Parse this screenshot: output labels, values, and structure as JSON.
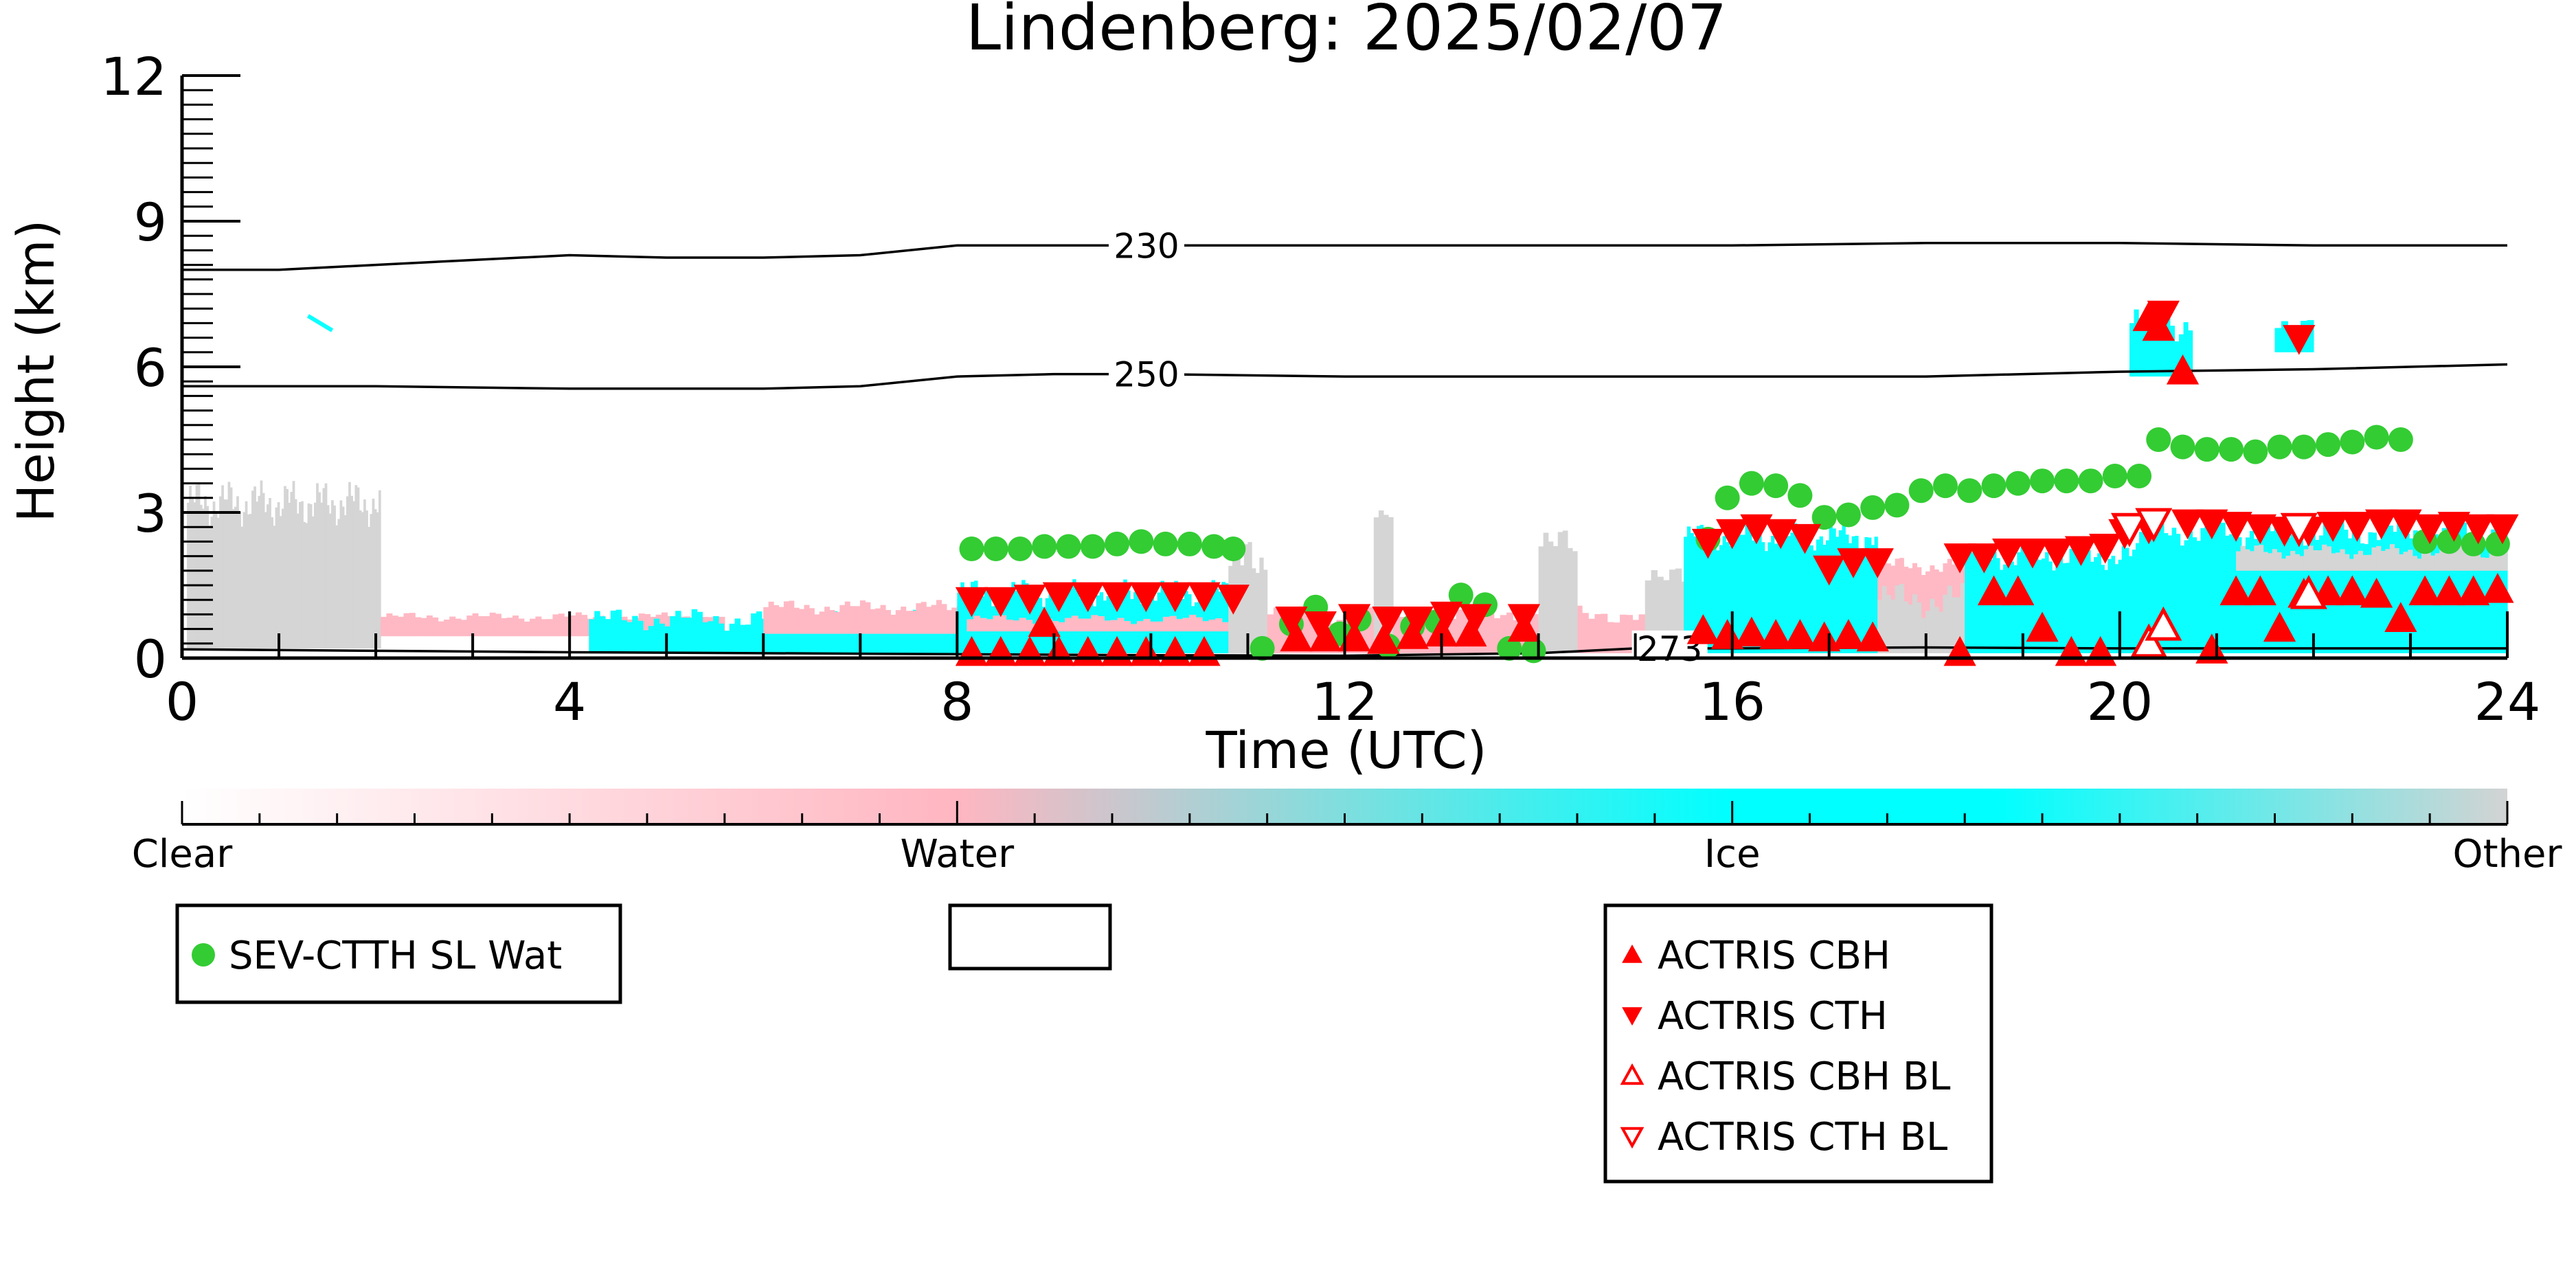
{
  "chart_data": {
    "type": "scatter",
    "title": "Lindenberg: 2025/02/07",
    "xlabel": "Time (UTC)",
    "ylabel": "Height (km)",
    "xlim": [
      0,
      24
    ],
    "ylim": [
      0,
      12
    ],
    "xticks": [
      "0",
      "4",
      "8",
      "12",
      "16",
      "20",
      "24"
    ],
    "yticks": [
      "0",
      "3",
      "6",
      "9",
      "12"
    ],
    "grid": false,
    "colors": {
      "clear": "#ffffff",
      "water": "#ffb6c1",
      "ice": "#00ffff",
      "other": "#d3d3d3",
      "sev": "#33cc33",
      "actris": "#ff0000",
      "contour": "#000000"
    },
    "contours": [
      {
        "label": "230",
        "x": [
          0,
          1,
          2,
          3,
          4,
          5,
          6,
          7,
          8,
          9,
          10,
          12,
          14,
          16,
          18,
          20,
          22,
          24
        ],
        "y": [
          8.0,
          8.0,
          8.1,
          8.2,
          8.3,
          8.25,
          8.25,
          8.3,
          8.5,
          8.5,
          8.5,
          8.5,
          8.5,
          8.5,
          8.55,
          8.55,
          8.5,
          8.5
        ],
        "label_x": 9.6
      },
      {
        "label": "250",
        "x": [
          0,
          2,
          4,
          6,
          7,
          8,
          9,
          10,
          12,
          14,
          16,
          18,
          20,
          22,
          24
        ],
        "y": [
          5.6,
          5.6,
          5.55,
          5.55,
          5.6,
          5.8,
          5.85,
          5.85,
          5.8,
          5.8,
          5.8,
          5.8,
          5.9,
          5.95,
          6.05
        ],
        "label_x": 9.6
      },
      {
        "label": "273",
        "x": [
          0,
          4,
          8,
          10,
          12,
          14,
          15,
          16,
          18,
          20,
          22,
          24
        ],
        "y": [
          0.18,
          0.12,
          0.08,
          0.06,
          0.05,
          0.1,
          0.2,
          0.2,
          0.22,
          0.2,
          0.2,
          0.2
        ],
        "label_x": 15.0
      }
    ],
    "series": [
      {
        "name": "SEV-CTTH SL Wat",
        "marker": "circle",
        "x": [
          8.15,
          8.4,
          8.65,
          8.9,
          9.15,
          9.4,
          9.65,
          9.9,
          10.15,
          10.4,
          10.65,
          10.85,
          11.15,
          11.45,
          11.7,
          11.95,
          12.15,
          12.45,
          12.7,
          12.95,
          13.2,
          13.45,
          13.7,
          13.95,
          15.75,
          15.95,
          16.2,
          16.45,
          16.7,
          16.95,
          17.2,
          17.45,
          17.7,
          17.95,
          18.2,
          18.45,
          18.7,
          18.95,
          19.2,
          19.45,
          19.7,
          19.95,
          20.2,
          20.4,
          20.65,
          20.9,
          21.15,
          21.4,
          21.65,
          21.9,
          22.15,
          22.4,
          22.65,
          22.9,
          23.15,
          23.4,
          23.65,
          23.9
        ],
        "y": [
          2.25,
          2.25,
          2.25,
          2.3,
          2.3,
          2.3,
          2.35,
          2.4,
          2.35,
          2.35,
          2.3,
          2.25,
          0.2,
          0.7,
          1.05,
          0.5,
          0.8,
          0.25,
          0.65,
          0.75,
          1.3,
          1.1,
          0.2,
          0.15,
          2.45,
          3.3,
          3.6,
          3.55,
          3.35,
          2.9,
          2.95,
          3.1,
          3.15,
          3.45,
          3.55,
          3.45,
          3.55,
          3.6,
          3.65,
          3.65,
          3.65,
          3.75,
          3.75,
          4.5,
          4.35,
          4.3,
          4.3,
          4.25,
          4.35,
          4.35,
          4.4,
          4.45,
          4.55,
          4.5,
          2.4,
          2.4,
          2.35,
          2.35
        ]
      },
      {
        "name": "ACTRIS CBH",
        "marker": "triangle-up-filled",
        "x": [
          8.15,
          8.45,
          8.75,
          9.05,
          9.35,
          9.65,
          9.95,
          10.25,
          10.55,
          8.9,
          11.5,
          11.8,
          12.1,
          12.4,
          12.7,
          13.0,
          13.3,
          13.85,
          15.7,
          15.95,
          16.2,
          16.45,
          16.7,
          16.95,
          17.2,
          17.45,
          18.35,
          18.7,
          18.95,
          19.2,
          19.5,
          19.8,
          20.3,
          20.4,
          20.65,
          20.95,
          21.2,
          21.45,
          21.65,
          21.9,
          22.15,
          22.4,
          22.65,
          22.9,
          23.15,
          23.4,
          23.65,
          23.9
        ],
        "y": [
          0.1,
          0.1,
          0.1,
          0.1,
          0.1,
          0.1,
          0.1,
          0.1,
          0.1,
          0.7,
          0.4,
          0.4,
          0.4,
          0.35,
          0.45,
          0.5,
          0.5,
          0.6,
          0.55,
          0.45,
          0.5,
          0.45,
          0.45,
          0.4,
          0.45,
          0.4,
          0.1,
          1.35,
          1.35,
          0.6,
          0.1,
          0.1,
          7.0,
          6.8,
          5.9,
          0.15,
          1.35,
          1.35,
          0.6,
          1.3,
          1.35,
          1.35,
          1.3,
          0.8,
          1.35,
          1.35,
          1.35,
          1.4
        ]
      },
      {
        "name": "ACTRIS CTH",
        "marker": "triangle-down-filled",
        "x": [
          8.15,
          8.45,
          8.75,
          9.05,
          9.35,
          9.65,
          9.95,
          10.25,
          10.55,
          10.85,
          11.45,
          11.75,
          12.1,
          12.45,
          12.75,
          13.05,
          13.35,
          13.85,
          15.75,
          16.0,
          16.25,
          16.5,
          16.75,
          17.0,
          17.25,
          17.5,
          18.35,
          18.6,
          18.85,
          19.1,
          19.35,
          19.6,
          19.85,
          20.05,
          20.3,
          20.45,
          20.7,
          20.95,
          21.2,
          21.45,
          21.7,
          21.95,
          22.2,
          22.45,
          22.7,
          22.95,
          23.2,
          23.45,
          23.7,
          23.95,
          21.85
        ],
        "y": [
          1.2,
          1.2,
          1.25,
          1.3,
          1.3,
          1.3,
          1.3,
          1.3,
          1.3,
          1.25,
          0.8,
          0.7,
          0.85,
          0.8,
          0.8,
          0.9,
          0.85,
          0.85,
          2.4,
          2.6,
          2.7,
          2.6,
          2.5,
          1.85,
          2.0,
          2.0,
          2.1,
          2.1,
          2.2,
          2.2,
          2.2,
          2.25,
          2.3,
          2.6,
          2.7,
          7.1,
          2.8,
          2.8,
          2.75,
          2.7,
          2.65,
          2.65,
          2.75,
          2.75,
          2.8,
          2.8,
          2.7,
          2.75,
          2.7,
          2.7,
          6.6
        ]
      },
      {
        "name": "ACTRIS CBH BL",
        "marker": "triangle-up-open",
        "x": [
          20.3,
          20.45,
          21.95
        ],
        "y": [
          0.3,
          0.65,
          1.3
        ]
      },
      {
        "name": "ACTRIS CTH BL",
        "marker": "triangle-down-open",
        "x": [
          20.1,
          20.35,
          21.85
        ],
        "y": [
          2.7,
          2.8,
          2.7
        ]
      }
    ],
    "colorbar": {
      "labels": [
        "Clear",
        "Water",
        "Ice",
        "Other"
      ]
    },
    "legend": {
      "left": [
        "SEV-CTTH SL Wat"
      ],
      "middle": [],
      "right": [
        "ACTRIS CBH",
        "ACTRIS CTH",
        "ACTRIS CBH BL",
        "ACTRIS CTH BL"
      ]
    }
  }
}
